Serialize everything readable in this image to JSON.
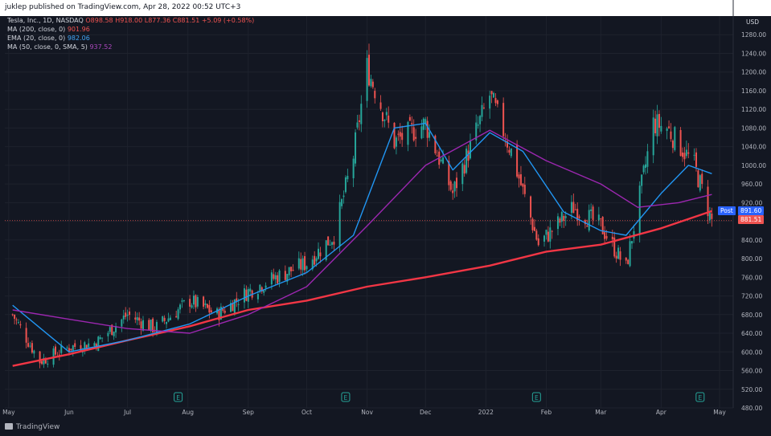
{
  "header": {
    "published": "juklep published on TradingView.com, Apr 28, 2022 00:52 UTC+3"
  },
  "legend": {
    "symbol": "Tesla, Inc., 1D, NASDAQ",
    "ohlc": "O898.58  H918.00  L877.36  C881.51  +5.09 (+0.58%)",
    "ma200": {
      "label": "MA (200, close, 0)",
      "value": "901.96"
    },
    "ema20": {
      "label": "EMA (20, close, 0)",
      "value": "982.06"
    },
    "ma50": {
      "label": "MA (50, close, 0, SMA, 5)",
      "value": "937.52"
    }
  },
  "price_axis": {
    "currency": "USD",
    "post_label": "Post",
    "post_value": "891.60",
    "last_value": "881.51"
  },
  "footer": {
    "brand": "TradingView"
  },
  "colors": {
    "background": "#131722",
    "up": "#26a69a",
    "down": "#ef5350",
    "ma200": "#f23645",
    "ema20": "#2196f3",
    "ma50": "#9c27b0",
    "grid": "#1e222d",
    "post": "#2962ff"
  },
  "chart_data": {
    "type": "line",
    "title": "Tesla, Inc., 1D, NASDAQ",
    "ylim": [
      480,
      1320
    ],
    "yticks": [
      480,
      520,
      560,
      600,
      640,
      680,
      720,
      760,
      800,
      840,
      880,
      920,
      960,
      1000,
      1040,
      1080,
      1120,
      1160,
      1200,
      1240,
      1280
    ],
    "xticks": [
      "May",
      "Jun",
      "Jul",
      "Aug",
      "Sep",
      "Oct",
      "Nov",
      "Dec",
      "2022",
      "Feb",
      "Mar",
      "Apr",
      "May"
    ],
    "earnings_markers": [
      "E",
      "E",
      "E",
      "E"
    ],
    "series": [
      {
        "name": "Close",
        "x": [
          "2021-05-03",
          "2021-05-17",
          "2021-06-01",
          "2021-06-15",
          "2021-07-01",
          "2021-07-15",
          "2021-08-02",
          "2021-08-16",
          "2021-09-01",
          "2021-09-15",
          "2021-10-01",
          "2021-10-15",
          "2021-10-25",
          "2021-11-01",
          "2021-11-15",
          "2021-12-01",
          "2021-12-15",
          "2022-01-03",
          "2022-01-14",
          "2022-01-28",
          "2022-02-15",
          "2022-03-01",
          "2022-03-14",
          "2022-03-28",
          "2022-04-04",
          "2022-04-18",
          "2022-04-27"
        ],
        "values": [
          680,
          580,
          610,
          620,
          680,
          650,
          710,
          680,
          730,
          760,
          790,
          850,
          1020,
          1210,
          1050,
          1090,
          940,
          1150,
          1030,
          830,
          910,
          870,
          780,
          1090,
          1080,
          1000,
          881.51
        ]
      },
      {
        "name": "MA (200, close, 0)",
        "x": [
          "2021-05-03",
          "2021-06-01",
          "2021-07-01",
          "2021-08-02",
          "2021-09-01",
          "2021-10-01",
          "2021-11-01",
          "2021-12-01",
          "2022-01-03",
          "2022-02-01",
          "2022-03-01",
          "2022-04-01",
          "2022-04-27"
        ],
        "values": [
          570,
          595,
          625,
          655,
          690,
          710,
          740,
          760,
          785,
          815,
          830,
          865,
          901.96
        ]
      },
      {
        "name": "EMA (20, close, 0)",
        "x": [
          "2021-05-03",
          "2021-06-01",
          "2021-07-01",
          "2021-08-02",
          "2021-09-01",
          "2021-10-01",
          "2021-10-25",
          "2021-11-15",
          "2021-12-01",
          "2021-12-15",
          "2022-01-03",
          "2022-01-20",
          "2022-02-10",
          "2022-03-01",
          "2022-03-14",
          "2022-04-01",
          "2022-04-15",
          "2022-04-27"
        ],
        "values": [
          700,
          600,
          625,
          660,
          720,
          770,
          850,
          1080,
          1090,
          990,
          1070,
          1030,
          900,
          860,
          850,
          940,
          1000,
          982.06
        ]
      },
      {
        "name": "MA (50, close, 0, SMA, 5)",
        "x": [
          "2021-05-03",
          "2021-06-01",
          "2021-07-01",
          "2021-08-02",
          "2021-09-01",
          "2021-10-01",
          "2021-11-01",
          "2021-12-01",
          "2022-01-03",
          "2022-02-01",
          "2022-03-01",
          "2022-03-20",
          "2022-04-10",
          "2022-04-27"
        ],
        "values": [
          690,
          670,
          650,
          640,
          680,
          740,
          870,
          1000,
          1075,
          1010,
          960,
          910,
          920,
          937.52
        ]
      }
    ]
  }
}
